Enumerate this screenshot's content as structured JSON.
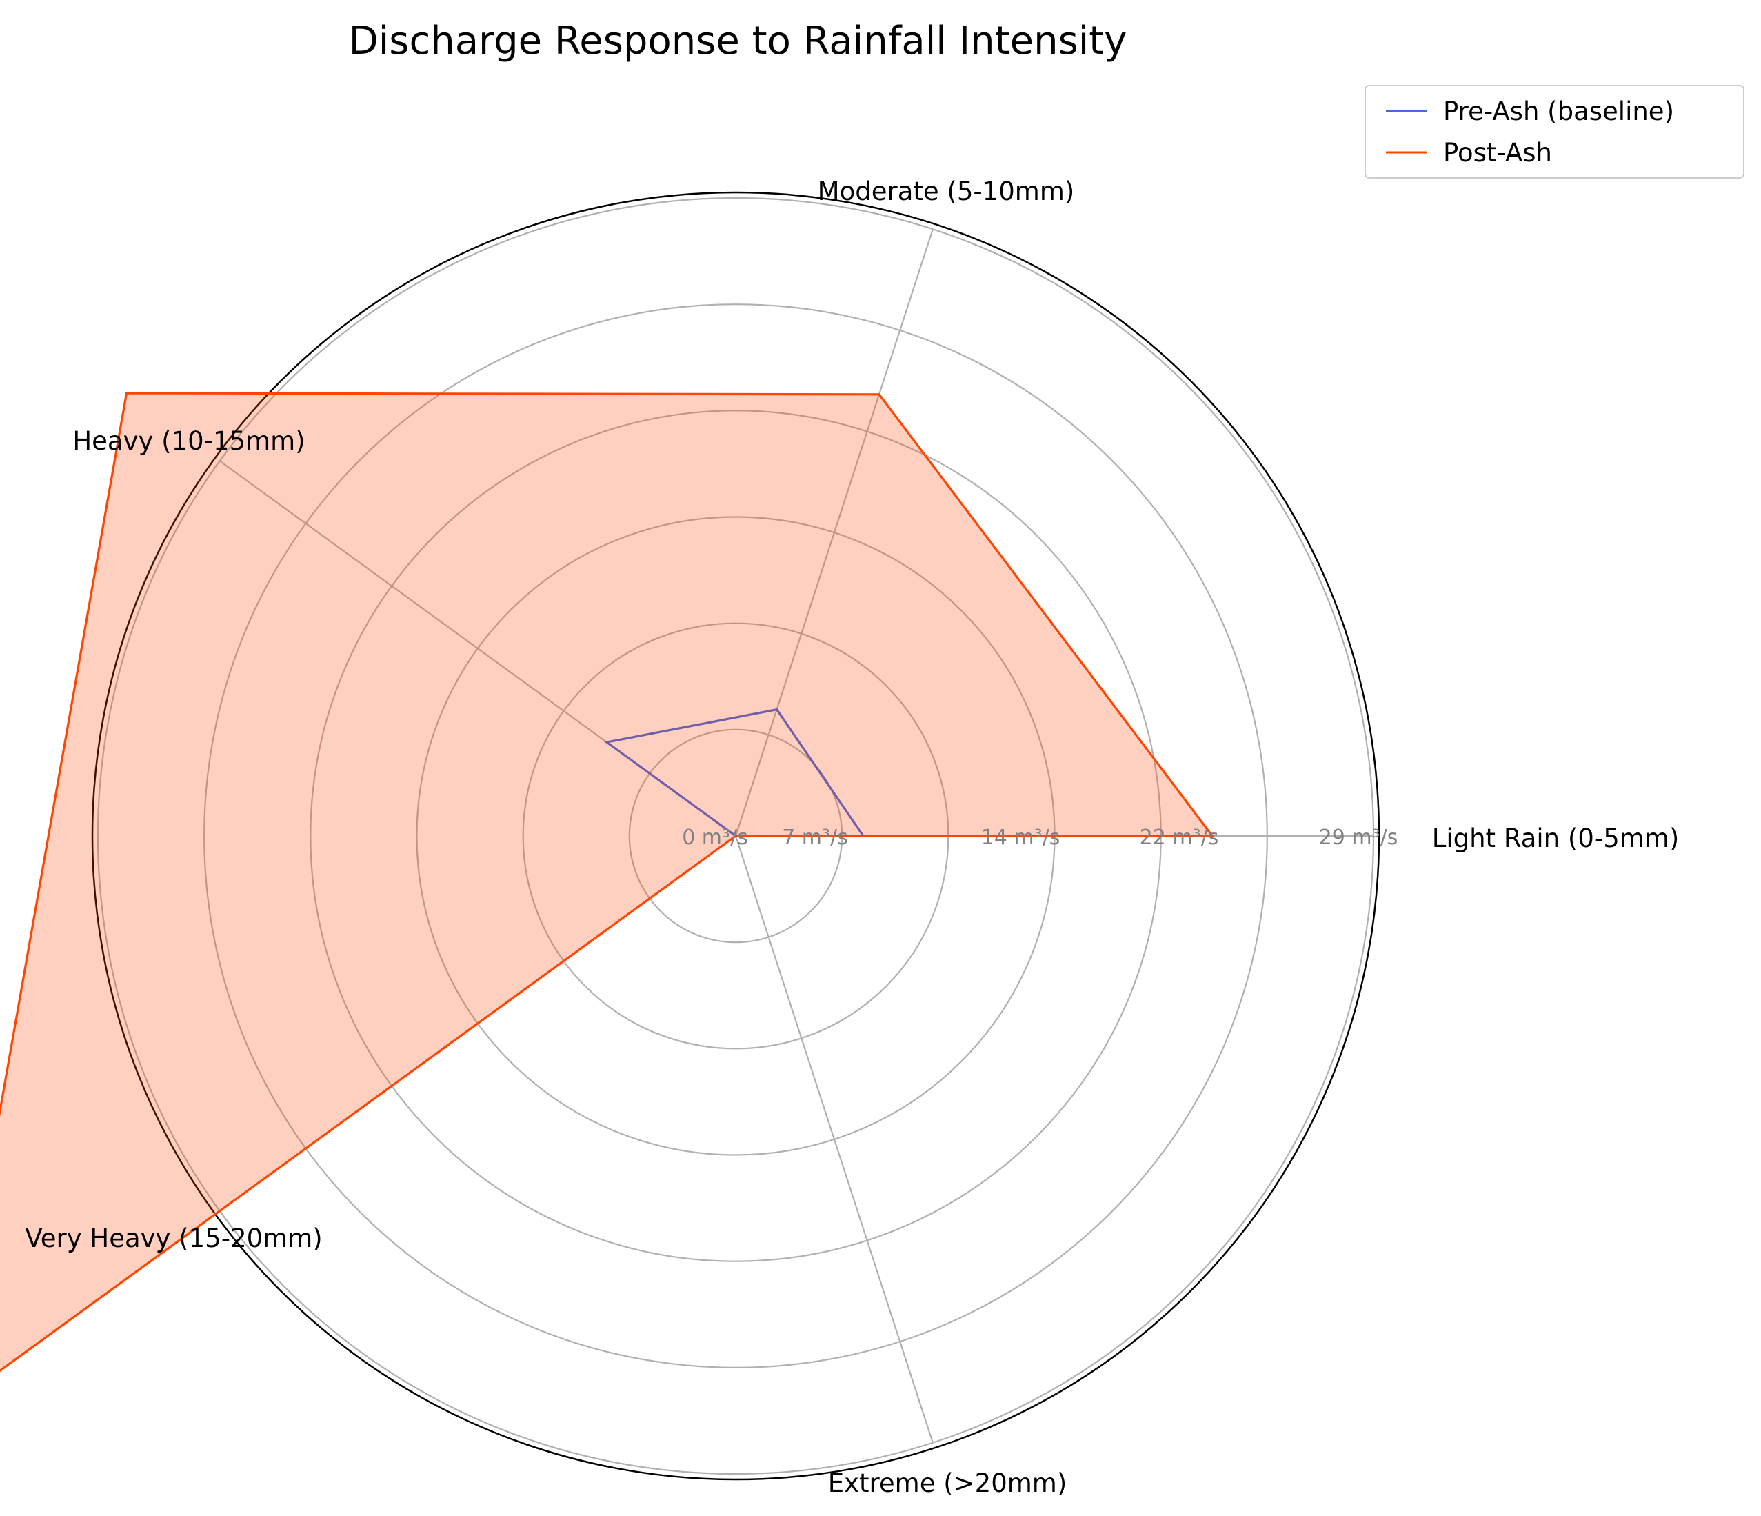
{
  "chart_data": {
    "type": "radar",
    "title": "Discharge Response to Rainfall Intensity",
    "categories": [
      "Light Rain (0-5mm)",
      "Moderate (5-10mm)",
      "Heavy (10-15mm)",
      "Very Heavy (15-20mm)",
      "Extreme (>20mm)"
    ],
    "radial_ticks": [
      "0 m³/s",
      "7 m³/s",
      "14 m³/s",
      "22 m³/s",
      "29 m³/s"
    ],
    "rlim": [
      0,
      36
    ],
    "series": [
      {
        "name": "Pre-Ash (baseline)",
        "color": "#4169E1",
        "fill": false,
        "values": [
          7.2,
          7.5,
          9.0,
          0,
          0
        ]
      },
      {
        "name": "Post-Ash",
        "color": "#FF4500",
        "fill": true,
        "fill_opacity": 0.25,
        "values": [
          26.9,
          26.2,
          42.5,
          55.0,
          0
        ]
      }
    ],
    "grid": true,
    "legend_position": "top-right"
  }
}
